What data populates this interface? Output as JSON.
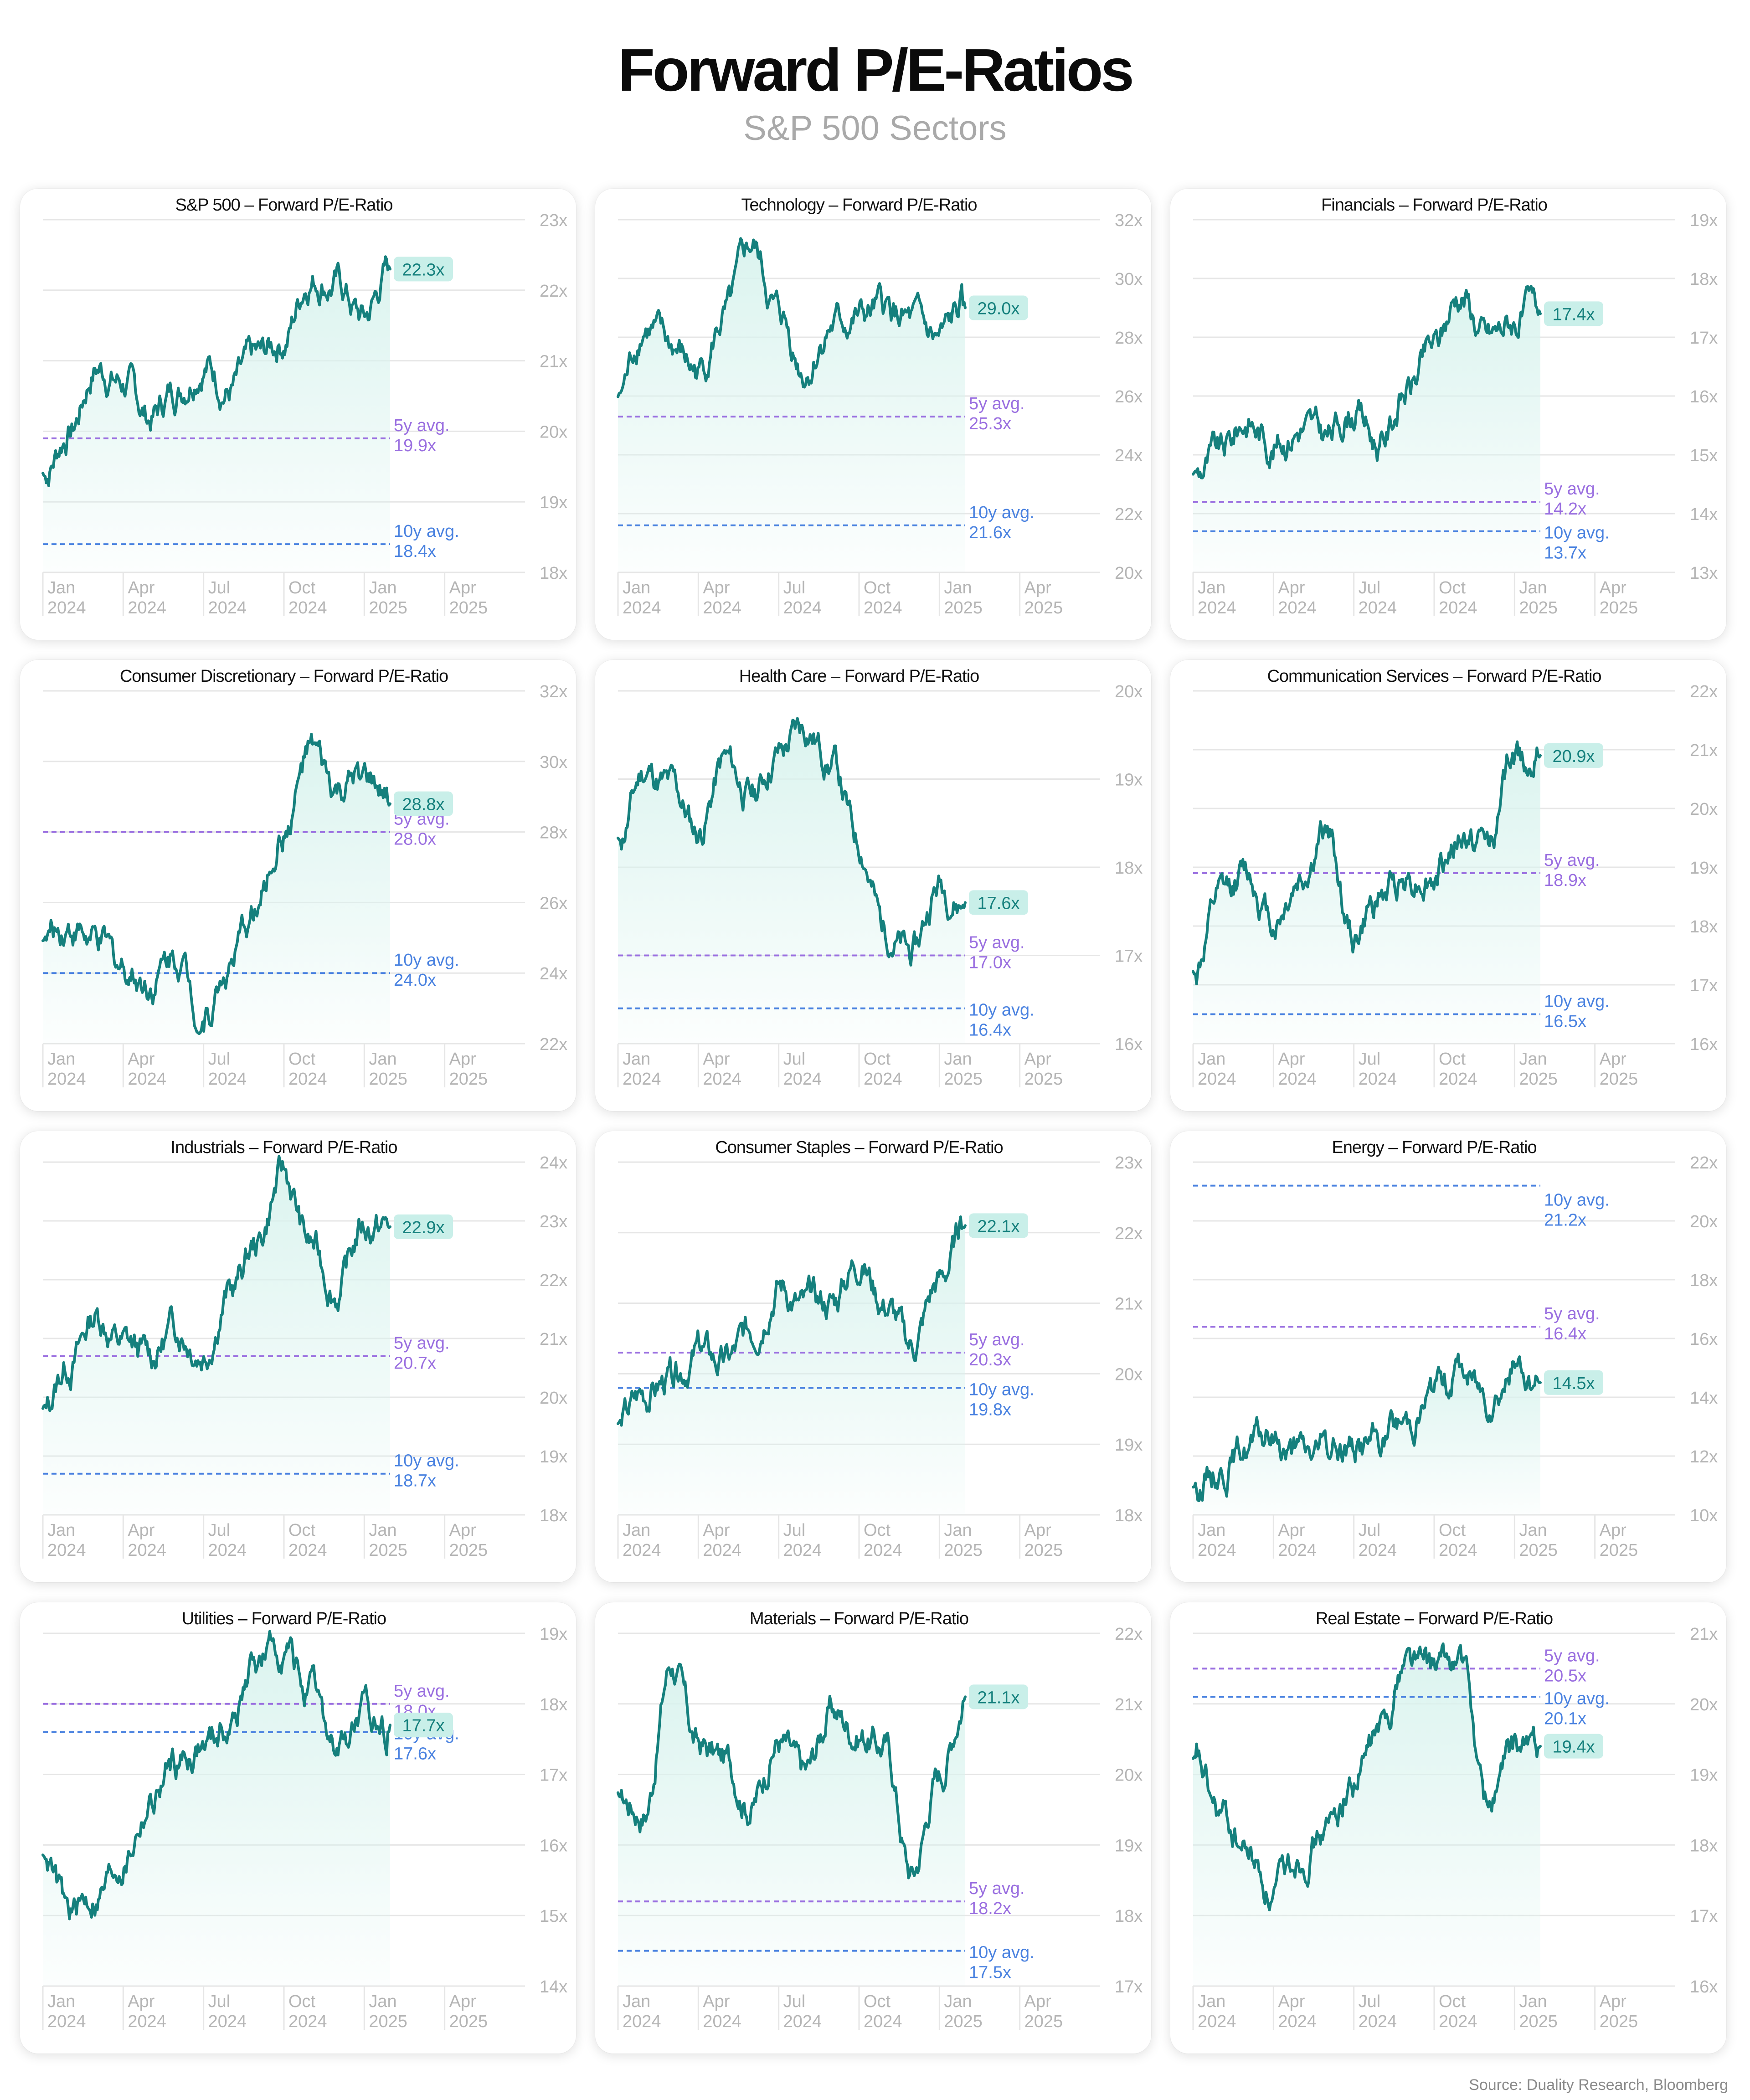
{
  "title": "Forward P/E-Ratios",
  "subtitle": "S&P 500 Sectors",
  "source": "Source: Duality Research, Bloomberg",
  "colors": {
    "line": "#15807d",
    "fill": "#d9f3ee",
    "avg5": "#9a6fe0",
    "avg10": "#4a82e0",
    "label_bg": "#c9efe9",
    "grid": "#e6e6e6",
    "tick": "#b5b5b5"
  },
  "x_ticks": [
    {
      "month": "Jan",
      "year": "2024"
    },
    {
      "month": "Apr",
      "year": "2024"
    },
    {
      "month": "Jul",
      "year": "2024"
    },
    {
      "month": "Oct",
      "year": "2024"
    },
    {
      "month": "Jan",
      "year": "2025"
    },
    {
      "month": "Apr",
      "year": "2025"
    }
  ],
  "chart_data": [
    {
      "type": "area",
      "title": "S&P 500 – Forward P/E-Ratio",
      "x_range": [
        "2024-01",
        "2025-06"
      ],
      "ylim": [
        18,
        23
      ],
      "yticks": [
        "23x",
        "22x",
        "21x",
        "20x",
        "19x",
        "18x"
      ],
      "current": 22.3,
      "current_label": "22.3x",
      "avg5": 19.9,
      "avg5_label": [
        "5y avg.",
        "19.9x"
      ],
      "avg10": 18.4,
      "avg10_label": [
        "10y avg.",
        "18.4x"
      ],
      "x": [
        "2024-01",
        "2024-02",
        "2024-03",
        "2024-04",
        "2024-05",
        "2024-06",
        "2024-07",
        "2024-08",
        "2024-09",
        "2024-10",
        "2024-11",
        "2024-12",
        "2025-01",
        "2025-02"
      ],
      "values": [
        19.4,
        20.0,
        20.9,
        20.7,
        20.2,
        20.6,
        21.0,
        20.6,
        21.0,
        21.3,
        22.2,
        22.1,
        21.6,
        22.3
      ]
    },
    {
      "type": "area",
      "title": "Technology – Forward P/E-Ratio",
      "x_range": [
        "2024-01",
        "2025-06"
      ],
      "ylim": [
        20,
        32
      ],
      "yticks": [
        "32x",
        "30x",
        "28x",
        "26x",
        "24x",
        "22x",
        "20x"
      ],
      "current": 29.0,
      "current_label": "29.0x",
      "avg5": 25.3,
      "avg5_label": [
        "5y avg.",
        "25.3x"
      ],
      "avg10": 21.6,
      "avg10_label": [
        "10y avg.",
        "21.6x"
      ],
      "x": [
        "2024-01",
        "2024-02",
        "2024-03",
        "2024-04",
        "2024-05",
        "2024-06",
        "2024-07",
        "2024-08",
        "2024-09",
        "2024-10",
        "2024-11",
        "2024-12",
        "2025-01",
        "2025-02"
      ],
      "values": [
        26.0,
        28.4,
        27.6,
        26.8,
        28.6,
        31.0,
        28.8,
        26.9,
        28.4,
        28.6,
        28.9,
        28.4,
        27.8,
        29.0
      ]
    },
    {
      "type": "area",
      "title": "Financials – Forward P/E-Ratio",
      "x_range": [
        "2024-01",
        "2025-06"
      ],
      "ylim": [
        13,
        19
      ],
      "yticks": [
        "19x",
        "18x",
        "17x",
        "16x",
        "15x",
        "14x",
        "13x"
      ],
      "current": 17.4,
      "current_label": "17.4x",
      "avg5": 14.2,
      "avg5_label": [
        "5y avg.",
        "14.2x"
      ],
      "avg10": 13.7,
      "avg10_label": [
        "10y avg.",
        "13.7x"
      ],
      "x": [
        "2024-01",
        "2024-02",
        "2024-03",
        "2024-04",
        "2024-05",
        "2024-06",
        "2024-07",
        "2024-08",
        "2024-09",
        "2024-10",
        "2024-11",
        "2024-12",
        "2025-01",
        "2025-02"
      ],
      "values": [
        14.7,
        15.0,
        15.6,
        15.2,
        15.5,
        15.3,
        15.8,
        15.2,
        16.1,
        16.8,
        17.8,
        17.0,
        17.3,
        17.4
      ]
    },
    {
      "type": "area",
      "title": "Consumer Discretionary – Forward P/E-Ratio",
      "x_range": [
        "2024-01",
        "2025-06"
      ],
      "ylim": [
        22,
        32
      ],
      "yticks": [
        "32x",
        "30x",
        "28x",
        "26x",
        "24x",
        "22x"
      ],
      "current": 28.8,
      "current_label": "28.8x",
      "avg5": 28.0,
      "avg5_label": [
        "5y avg.",
        "28.0x"
      ],
      "avg10": 24.0,
      "avg10_label": [
        "10y avg.",
        "24.0x"
      ],
      "x": [
        "2024-01",
        "2024-02",
        "2024-03",
        "2024-04",
        "2024-05",
        "2024-06",
        "2024-07",
        "2024-08",
        "2024-09",
        "2024-10",
        "2024-11",
        "2024-12",
        "2025-01",
        "2025-02"
      ],
      "values": [
        25.0,
        25.4,
        24.8,
        24.2,
        23.8,
        24.6,
        22.8,
        24.2,
        25.8,
        28.0,
        30.2,
        29.0,
        29.4,
        28.8
      ]
    },
    {
      "type": "area",
      "title": "Health Care – Forward P/E-Ratio",
      "x_range": [
        "2024-01",
        "2025-06"
      ],
      "ylim": [
        16,
        20
      ],
      "yticks": [
        "20x",
        "19x",
        "18x",
        "17x",
        "16x"
      ],
      "current": 17.6,
      "current_label": "17.6x",
      "avg5": 17.0,
      "avg5_label": [
        "5y avg.",
        "17.0x"
      ],
      "avg10": 16.4,
      "avg10_label": [
        "10y avg.",
        "16.4x"
      ],
      "x": [
        "2024-01",
        "2024-02",
        "2024-03",
        "2024-04",
        "2024-05",
        "2024-06",
        "2024-07",
        "2024-08",
        "2024-09",
        "2024-10",
        "2024-11",
        "2024-12",
        "2025-01",
        "2025-02"
      ],
      "values": [
        18.3,
        19.1,
        18.9,
        18.4,
        19.2,
        18.8,
        19.3,
        19.6,
        19.2,
        18.3,
        17.3,
        17.0,
        17.8,
        17.6
      ]
    },
    {
      "type": "area",
      "title": "Communication Services – Forward P/E-Ratio",
      "x_range": [
        "2024-01",
        "2025-06"
      ],
      "ylim": [
        16,
        22
      ],
      "yticks": [
        "22x",
        "21x",
        "20x",
        "19x",
        "18x",
        "17x",
        "16x"
      ],
      "current": 20.9,
      "current_label": "20.9x",
      "avg5": 18.9,
      "avg5_label": [
        "5y avg.",
        "18.9x"
      ],
      "avg10": 16.5,
      "avg10_label": [
        "10y avg.",
        "16.5x"
      ],
      "x": [
        "2024-01",
        "2024-02",
        "2024-03",
        "2024-04",
        "2024-05",
        "2024-06",
        "2024-07",
        "2024-08",
        "2024-09",
        "2024-10",
        "2024-11",
        "2024-12",
        "2025-01",
        "2025-02"
      ],
      "values": [
        17.2,
        18.4,
        18.9,
        18.1,
        18.8,
        19.6,
        17.8,
        18.5,
        18.9,
        18.8,
        19.5,
        19.4,
        20.8,
        20.9
      ]
    },
    {
      "type": "area",
      "title": "Industrials – Forward P/E-Ratio",
      "x_range": [
        "2024-01",
        "2025-06"
      ],
      "ylim": [
        18,
        24
      ],
      "yticks": [
        "24x",
        "23x",
        "22x",
        "21x",
        "20x",
        "19x",
        "18x"
      ],
      "current": 22.9,
      "current_label": "22.9x",
      "avg5": 20.7,
      "avg5_label": [
        "5y avg.",
        "20.7x"
      ],
      "avg10": 18.7,
      "avg10_label": [
        "10y avg.",
        "18.7x"
      ],
      "x": [
        "2024-01",
        "2024-02",
        "2024-03",
        "2024-04",
        "2024-05",
        "2024-06",
        "2024-07",
        "2024-08",
        "2024-09",
        "2024-10",
        "2024-11",
        "2024-12",
        "2025-01",
        "2025-02"
      ],
      "values": [
        19.8,
        20.6,
        21.4,
        20.9,
        20.7,
        21.2,
        20.8,
        21.8,
        22.6,
        23.8,
        22.6,
        21.8,
        22.9,
        22.9
      ]
    },
    {
      "type": "area",
      "title": "Consumer Staples – Forward P/E-Ratio",
      "x_range": [
        "2024-01",
        "2025-06"
      ],
      "ylim": [
        18,
        23
      ],
      "yticks": [
        "23x",
        "22x",
        "21x",
        "20x",
        "19x",
        "18x"
      ],
      "current": 22.1,
      "current_label": "22.1x",
      "avg5": 20.3,
      "avg5_label": [
        "5y avg.",
        "20.3x"
      ],
      "avg10": 19.8,
      "avg10_label": [
        "10y avg.",
        "19.8x"
      ],
      "x": [
        "2024-01",
        "2024-02",
        "2024-03",
        "2024-04",
        "2024-05",
        "2024-06",
        "2024-07",
        "2024-08",
        "2024-09",
        "2024-10",
        "2024-11",
        "2024-12",
        "2025-01",
        "2025-02"
      ],
      "values": [
        19.3,
        19.7,
        19.9,
        20.3,
        20.1,
        20.6,
        21.3,
        20.9,
        21.0,
        21.6,
        21.0,
        20.4,
        21.3,
        22.1
      ]
    },
    {
      "type": "area",
      "title": "Energy – Forward P/E-Ratio",
      "x_range": [
        "2024-01",
        "2025-06"
      ],
      "ylim": [
        10,
        22
      ],
      "yticks": [
        "22x",
        "20x",
        "18x",
        "16x",
        "14x",
        "12x",
        "10x"
      ],
      "current": 14.5,
      "current_label": "14.5x",
      "avg5": 16.4,
      "avg5_label": [
        "5y avg.",
        "16.4x"
      ],
      "avg10": 21.2,
      "avg10_label": [
        "10y avg.",
        "21.2x"
      ],
      "x": [
        "2024-01",
        "2024-02",
        "2024-03",
        "2024-04",
        "2024-05",
        "2024-06",
        "2024-07",
        "2024-08",
        "2024-09",
        "2024-10",
        "2024-11",
        "2024-12",
        "2025-01",
        "2025-02"
      ],
      "values": [
        11.0,
        11.6,
        12.3,
        12.6,
        12.0,
        12.2,
        12.4,
        12.5,
        13.2,
        14.2,
        14.9,
        14.2,
        15.0,
        14.5
      ]
    },
    {
      "type": "area",
      "title": "Utilities – Forward P/E-Ratio",
      "x_range": [
        "2024-01",
        "2025-06"
      ],
      "ylim": [
        14,
        19
      ],
      "yticks": [
        "19x",
        "18x",
        "17x",
        "16x",
        "15x",
        "14x"
      ],
      "current": 17.7,
      "current_label": "17.7x",
      "avg5": 18.0,
      "avg5_label": [
        "5y avg.",
        "18.0x"
      ],
      "avg10": 17.6,
      "avg10_label": [
        "10y avg.",
        "17.6x"
      ],
      "x": [
        "2024-01",
        "2024-02",
        "2024-03",
        "2024-04",
        "2024-05",
        "2024-06",
        "2024-07",
        "2024-08",
        "2024-09",
        "2024-10",
        "2024-11",
        "2024-12",
        "2025-01",
        "2025-02"
      ],
      "values": [
        15.9,
        15.0,
        15.3,
        15.8,
        16.6,
        17.2,
        17.4,
        17.7,
        18.6,
        18.8,
        18.1,
        17.3,
        17.8,
        17.7
      ]
    },
    {
      "type": "area",
      "title": "Materials – Forward P/E-Ratio",
      "x_range": [
        "2024-01",
        "2025-06"
      ],
      "ylim": [
        17,
        22
      ],
      "yticks": [
        "22x",
        "21x",
        "20x",
        "19x",
        "18x",
        "17x"
      ],
      "current": 21.1,
      "current_label": "21.1x",
      "avg5": 18.2,
      "avg5_label": [
        "5y avg.",
        "18.2x"
      ],
      "avg10": 17.5,
      "avg10_label": [
        "10y avg.",
        "17.5x"
      ],
      "x": [
        "2024-01",
        "2024-02",
        "2024-03",
        "2024-04",
        "2024-05",
        "2024-06",
        "2024-07",
        "2024-08",
        "2024-09",
        "2024-10",
        "2024-11",
        "2024-12",
        "2025-01",
        "2025-02"
      ],
      "values": [
        19.7,
        19.5,
        21.6,
        20.4,
        20.2,
        19.6,
        20.5,
        20.0,
        20.9,
        20.6,
        20.4,
        18.6,
        20.0,
        21.1
      ]
    },
    {
      "type": "area",
      "title": "Real Estate – Forward P/E-Ratio",
      "x_range": [
        "2024-01",
        "2025-06"
      ],
      "ylim": [
        16,
        21
      ],
      "yticks": [
        "21x",
        "20x",
        "19x",
        "18x",
        "17x",
        "16x"
      ],
      "current": 19.4,
      "current_label": "19.4x",
      "avg5": 20.5,
      "avg5_label": [
        "5y avg.",
        "20.5x"
      ],
      "avg10": 20.1,
      "avg10_label": [
        "10y avg.",
        "20.1x"
      ],
      "x": [
        "2024-01",
        "2024-02",
        "2024-03",
        "2024-04",
        "2024-05",
        "2024-06",
        "2024-07",
        "2024-08",
        "2024-09",
        "2024-10",
        "2024-11",
        "2024-12",
        "2025-01",
        "2025-02"
      ],
      "values": [
        19.2,
        18.4,
        17.9,
        17.3,
        17.9,
        18.2,
        18.9,
        19.6,
        20.7,
        20.5,
        20.6,
        18.6,
        19.3,
        19.4
      ]
    }
  ]
}
